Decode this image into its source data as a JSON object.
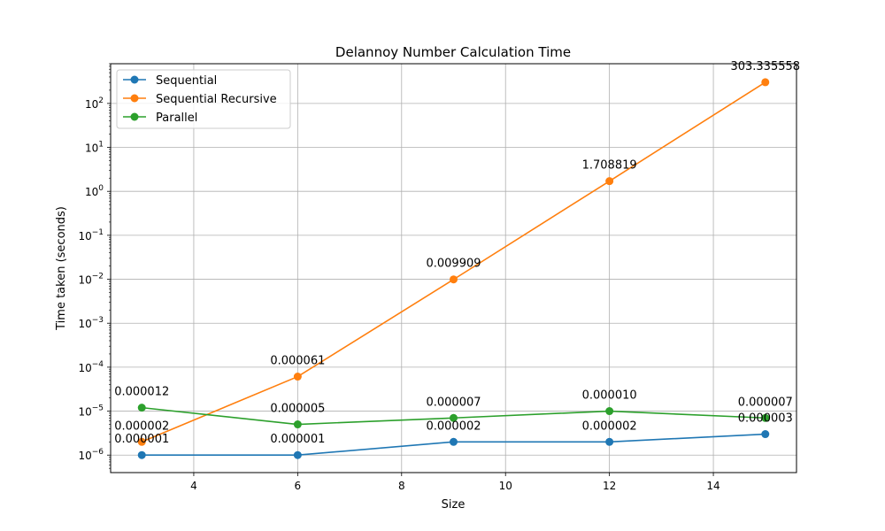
{
  "chart_data": {
    "type": "line",
    "title": "Delannoy Number Calculation Time",
    "xlabel": "Size",
    "ylabel": "Time taken (seconds)",
    "yscale": "log",
    "xlim": [
      2.4,
      15.6
    ],
    "ylim": [
      4e-07,
      800
    ],
    "grid": true,
    "legend_position": "top-left",
    "x": [
      3,
      6,
      9,
      12,
      15
    ],
    "x_ticks": [
      4,
      6,
      8,
      10,
      12,
      14
    ],
    "y_ticks": [
      {
        "value": 1e-06,
        "base": "10",
        "exp": "−6"
      },
      {
        "value": 1e-05,
        "base": "10",
        "exp": "−5"
      },
      {
        "value": 0.0001,
        "base": "10",
        "exp": "−4"
      },
      {
        "value": 0.001,
        "base": "10",
        "exp": "−3"
      },
      {
        "value": 0.01,
        "base": "10",
        "exp": "−2"
      },
      {
        "value": 0.1,
        "base": "10",
        "exp": "−1"
      },
      {
        "value": 1,
        "base": "10",
        "exp": "0"
      },
      {
        "value": 10,
        "base": "10",
        "exp": "1"
      },
      {
        "value": 100,
        "base": "10",
        "exp": "2"
      }
    ],
    "series": [
      {
        "name": "Sequential",
        "color": "#1f77b4",
        "values": [
          1e-06,
          1e-06,
          2e-06,
          2e-06,
          3e-06
        ],
        "labels": [
          "0.000001",
          "0.000001",
          "0.000002",
          "0.000002",
          "0.000003"
        ]
      },
      {
        "name": "Sequential Recursive",
        "color": "#ff7f0e",
        "values": [
          2e-06,
          6.1e-05,
          0.009909,
          1.708819,
          303.335558
        ],
        "labels": [
          "0.000002",
          "0.000061",
          "0.009909",
          "1.708819",
          "303.335558"
        ]
      },
      {
        "name": "Parallel",
        "color": "#2ca02c",
        "values": [
          1.2e-05,
          5e-06,
          7e-06,
          1e-05,
          7e-06
        ],
        "labels": [
          "0.000012",
          "0.000005",
          "0.000007",
          "0.000010",
          "0.000007"
        ]
      }
    ]
  }
}
